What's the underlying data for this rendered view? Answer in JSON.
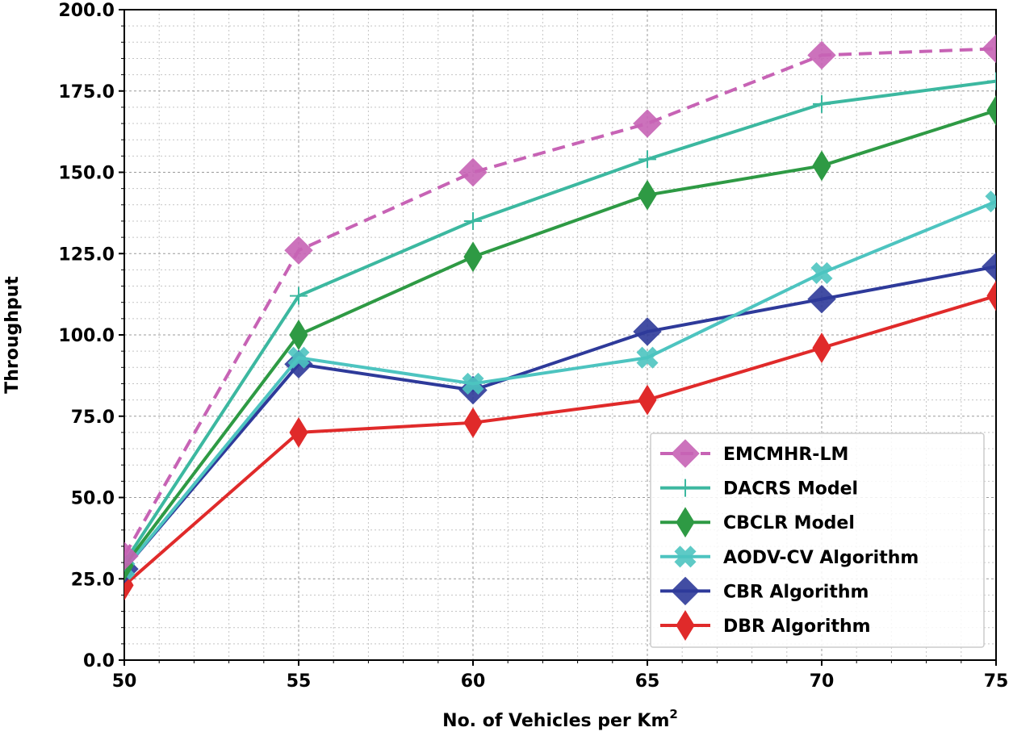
{
  "chart_data": {
    "type": "line",
    "title": "",
    "xlabel": "No. of Vehicles per Km",
    "xlabel_superscript": "2",
    "ylabel": "Throughput",
    "x": [
      50,
      55,
      60,
      65,
      70,
      75
    ],
    "xlim": [
      50,
      75
    ],
    "ylim": [
      0,
      200
    ],
    "x_ticks": [
      "50",
      "55",
      "60",
      "65",
      "70",
      "75"
    ],
    "y_ticks": [
      "0.0",
      "25.0",
      "50.0",
      "75.0",
      "100.0",
      "125.0",
      "150.0",
      "175.0",
      "200.0"
    ],
    "grid": true,
    "legend_position": "bottom-right",
    "series": [
      {
        "name": "EMCMHR-LM",
        "values": [
          32,
          126,
          150,
          165,
          186,
          188
        ],
        "color": "#c763b5",
        "marker": "diamond",
        "dashed": true
      },
      {
        "name": "DACRS Model",
        "values": [
          30,
          112,
          135,
          154,
          171,
          178
        ],
        "color": "#3cb8a0",
        "marker": "plus",
        "dashed": false
      },
      {
        "name": "CBCLR Model",
        "values": [
          29,
          100,
          124,
          143,
          152,
          169
        ],
        "color": "#2e9a44",
        "marker": "thin-diamond",
        "dashed": false
      },
      {
        "name": "AODV-CV Algorithm",
        "values": [
          28,
          93,
          85,
          93,
          119,
          141
        ],
        "color": "#4dc4c0",
        "marker": "x",
        "dashed": false
      },
      {
        "name": "CBR Algorithm",
        "values": [
          28,
          91,
          83,
          101,
          111,
          121
        ],
        "color": "#2e3a9a",
        "marker": "diamond",
        "dashed": false
      },
      {
        "name": "DBR Algorithm",
        "values": [
          23,
          70,
          73,
          80,
          96,
          112
        ],
        "color": "#e02a2a",
        "marker": "thin-diamond",
        "dashed": false
      }
    ]
  }
}
